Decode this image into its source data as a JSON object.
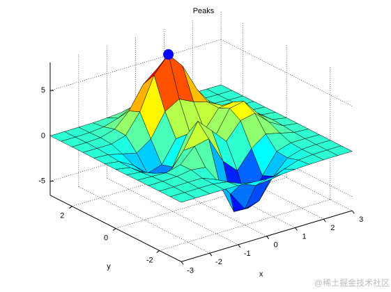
{
  "chart_data": {
    "type": "surface",
    "title": "Peaks",
    "xlabel": "x",
    "ylabel": "y",
    "x": [
      -3,
      -2.5,
      -2,
      -1.5,
      -1,
      -0.5,
      0,
      0.5,
      1,
      1.5,
      2,
      2.5,
      3
    ],
    "y": [
      -3,
      -2.5,
      -2,
      -1.5,
      -1,
      -0.5,
      0,
      0.5,
      1,
      1.5,
      2,
      2.5,
      3
    ],
    "z": [
      [
        0,
        0,
        0,
        0,
        -0.03,
        -0.14,
        -0.24,
        -0.22,
        -0.11,
        -0.03,
        0,
        0,
        0
      ],
      [
        0,
        0,
        0.01,
        0,
        -0.23,
        -0.91,
        -1.57,
        -1.41,
        -0.69,
        -0.18,
        -0.03,
        0,
        0
      ],
      [
        0,
        0.01,
        0.05,
        0.04,
        -0.59,
        -2.64,
        -4.76,
        -4.35,
        -2.1,
        -0.53,
        -0.06,
        0,
        0
      ],
      [
        0,
        0.01,
        0.08,
        0.33,
        0.15,
        -2.19,
        -5.68,
        -5.76,
        -2.64,
        -0.44,
        0.04,
        0.03,
        0
      ],
      [
        -0.01,
        -0.06,
        -0.13,
        0.3,
        1.86,
        2.22,
        -0.72,
        -2.22,
        -0.27,
        0.88,
        0.5,
        0.11,
        0.01
      ],
      [
        -0.03,
        -0.2,
        -0.8,
        -1.21,
        0.8,
        3.55,
        2,
        0.39,
        2.2,
        2.56,
        1.12,
        0.24,
        0.03
      ],
      [
        -0.04,
        -0.3,
        -1.33,
        -2.77,
        -1.65,
        1.48,
        0.98,
        0.37,
        2.94,
        3.27,
        1.41,
        0.3,
        0.03
      ],
      [
        -0.03,
        -0.25,
        -1.12,
        -2.49,
        -2,
        0.39,
        0.46,
        0.38,
        2.38,
        2.56,
        1.09,
        0.23,
        0.03
      ],
      [
        -0.01,
        -0.11,
        -0.48,
        -0.86,
        0.23,
        2.79,
        3.69,
        2.93,
        2.43,
        1.58,
        0.58,
        0.11,
        0.01
      ],
      [
        0,
        -0.02,
        -0.01,
        0.48,
        2.61,
        6.2,
        8,
        6.25,
        3.25,
        1.18,
        0.29,
        0.05,
        0
      ],
      [
        0,
        0.01,
        0.08,
        0.55,
        2.1,
        4.56,
        5.86,
        4.57,
        2.21,
        0.68,
        0.13,
        0.02,
        0
      ],
      [
        0,
        0,
        0.03,
        0.19,
        0.69,
        1.47,
        1.88,
        1.47,
        0.7,
        0.2,
        0.04,
        0,
        0
      ],
      [
        0,
        0,
        0.01,
        0.03,
        0.11,
        0.23,
        0.3,
        0.23,
        0.11,
        0.03,
        0.01,
        0,
        0
      ]
    ],
    "colormap": "jet",
    "edge_color": "#000000",
    "max_point": {
      "x": 0,
      "y": 1.5,
      "z": 8,
      "color": "#0000ff"
    },
    "xlim": [
      -3,
      3
    ],
    "ylim": [
      -3,
      3
    ],
    "zlim": [
      -6.55,
      8.1
    ],
    "xticks": [
      -3,
      -2,
      -1,
      0,
      1,
      2,
      3
    ],
    "yticks": [
      -2,
      0,
      2
    ],
    "zticks": [
      -5,
      0,
      5
    ],
    "grid": true,
    "watermark": "@稀土掘金技术社区"
  }
}
